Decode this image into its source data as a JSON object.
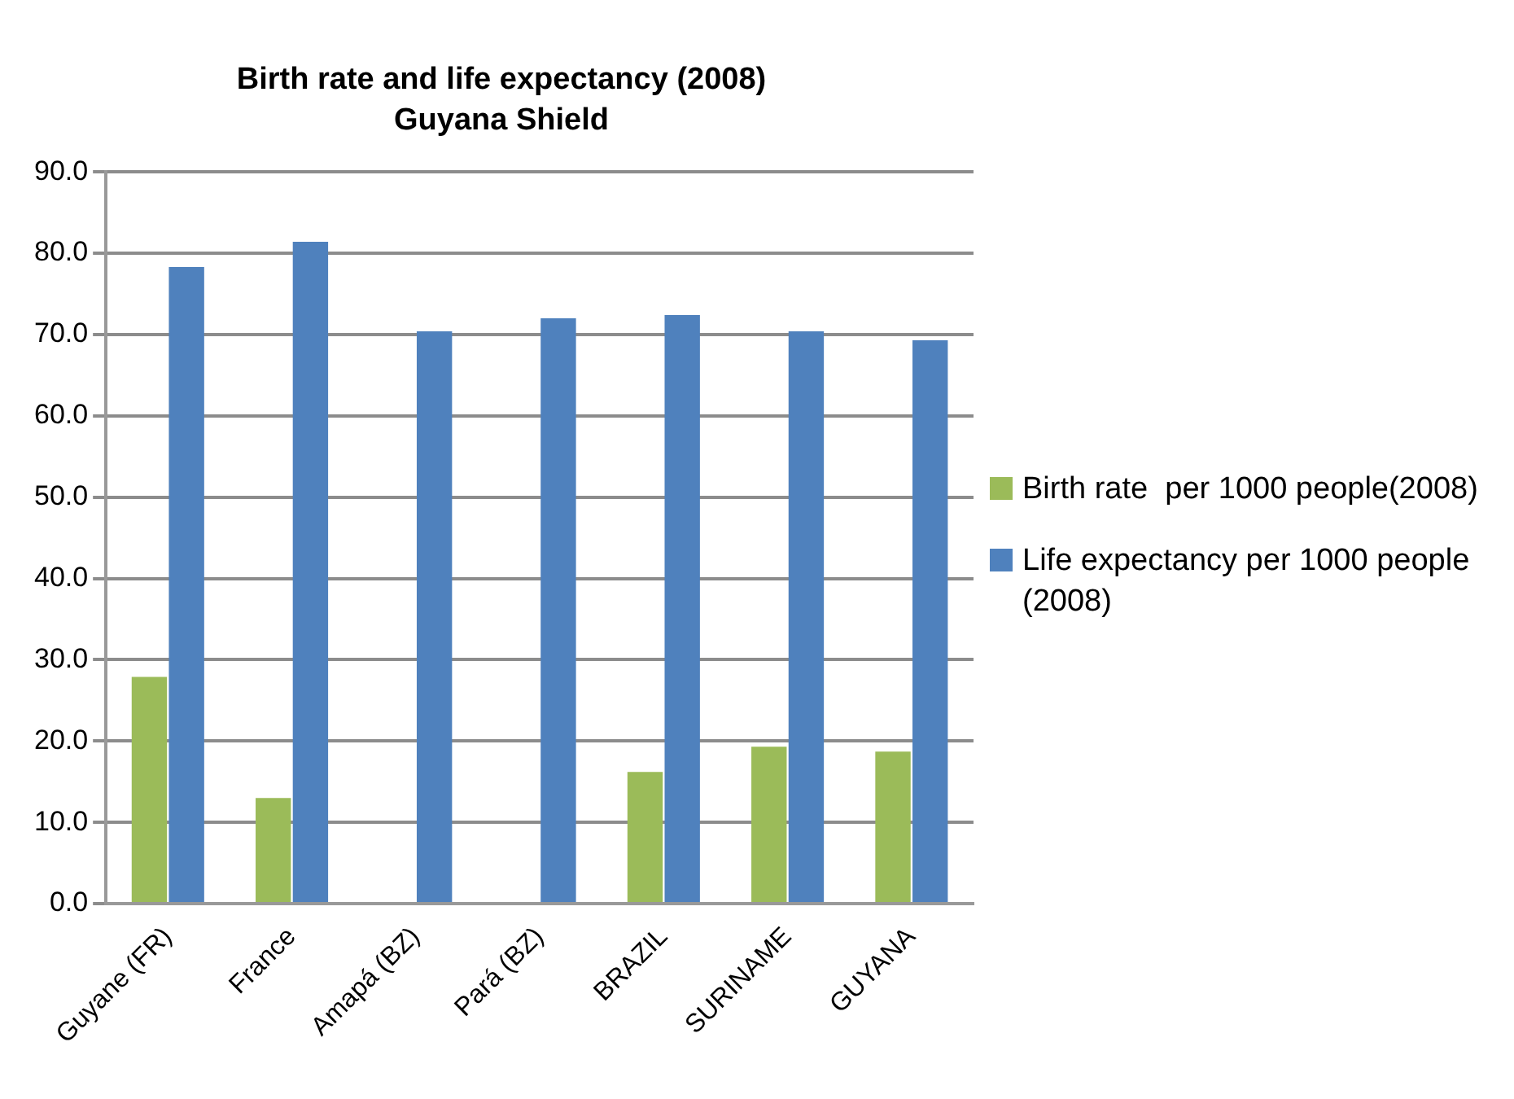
{
  "chart_data": {
    "type": "bar",
    "title": "Birth rate and life expectancy (2008)",
    "subtitle": "Guyana Shield",
    "categories": [
      "Guyane (FR)",
      "France",
      "Amapá (BZ)",
      "Pará (BZ)",
      "BRAZIL",
      "SURINAME",
      "GUYANA"
    ],
    "series": [
      {
        "name": "Birth rate  per 1000 people(2008)",
        "color": "#9bbb59",
        "values": [
          27.9,
          13.0,
          null,
          null,
          16.2,
          19.3,
          18.7
        ]
      },
      {
        "name": "Life expectancy per 1000 people (2008)",
        "color": "#4f81bd",
        "values": [
          78.3,
          81.4,
          70.4,
          72.0,
          72.4,
          70.4,
          69.3
        ]
      }
    ],
    "ylim": [
      0,
      90
    ],
    "yticks": [
      {
        "value": 0,
        "label": "0.0"
      },
      {
        "value": 10,
        "label": "10.0"
      },
      {
        "value": 20,
        "label": "20.0"
      },
      {
        "value": 30,
        "label": "30.0"
      },
      {
        "value": 40,
        "label": "40.0"
      },
      {
        "value": 50,
        "label": "50.0"
      },
      {
        "value": 60,
        "label": "60.0"
      },
      {
        "value": 70,
        "label": "70.0"
      },
      {
        "value": 80,
        "label": "80.0"
      },
      {
        "value": 90,
        "label": "90.0"
      }
    ],
    "grid": "y",
    "legend": "right"
  }
}
